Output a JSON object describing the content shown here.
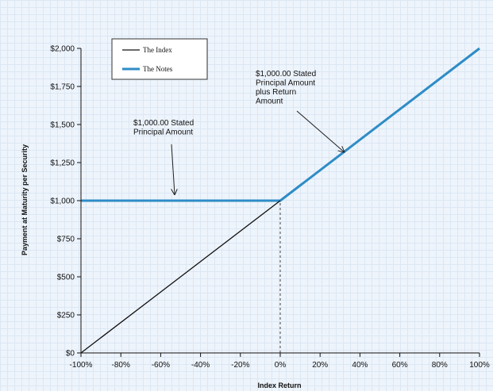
{
  "chart_data": {
    "type": "line",
    "title": "",
    "xlabel": "Index Return",
    "ylabel": "Payment at Maturity per Security",
    "xlim": [
      -100,
      100
    ],
    "ylim": [
      0,
      2000
    ],
    "x_ticks": [
      -100,
      -80,
      -60,
      -40,
      -20,
      0,
      20,
      40,
      60,
      80,
      100
    ],
    "x_tick_labels": [
      "-100%",
      "-80%",
      "-60%",
      "-40%",
      "-20%",
      "0%",
      "20%",
      "40%",
      "60%",
      "80%",
      "100%"
    ],
    "y_ticks": [
      0,
      250,
      500,
      750,
      1000,
      1250,
      1500,
      1750,
      2000
    ],
    "y_tick_labels": [
      "$0",
      "$250",
      "$500",
      "$750",
      "$1,000",
      "$1,250",
      "$1,500",
      "$1,750",
      "$2,000"
    ],
    "grid": false,
    "legend_position": "top-left",
    "series": [
      {
        "name": "The Index",
        "color": "#111111",
        "x": [
          -100,
          0
        ],
        "y": [
          0,
          1000
        ]
      },
      {
        "name": "The Notes",
        "color": "#2e8cc6",
        "x": [
          -100,
          0,
          100
        ],
        "y": [
          1000,
          1000,
          2000
        ]
      }
    ],
    "reference_line": {
      "x": 0,
      "y_from": 0,
      "y_to": 1000,
      "style": "dashed"
    },
    "annotations": [
      {
        "lines": [
          "$1,000.00 Stated",
          "Principal Amount"
        ],
        "arrow_to": {
          "x": -53,
          "y": 1000
        }
      },
      {
        "lines": [
          "$1,000.00 Stated",
          "Principal Amount",
          "plus Return",
          "Amount"
        ],
        "arrow_to": {
          "x": 32,
          "y": 1320
        }
      }
    ]
  }
}
